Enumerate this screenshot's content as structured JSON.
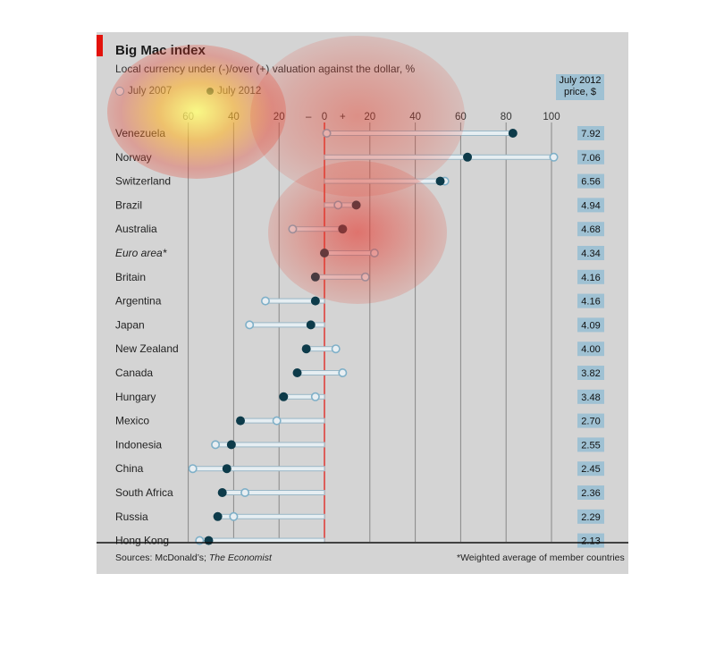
{
  "chart_data": {
    "type": "dot-range",
    "title": "Big Mac index",
    "subtitle": "Local currency under (-)/over (+) valuation against the dollar, %",
    "legend": [
      {
        "label": "July 2007",
        "marker": "hollow",
        "color": "#7fb0c8"
      },
      {
        "label": "July 2012",
        "marker": "filled",
        "color": "#0d3b4a"
      }
    ],
    "price_header": [
      "July 2012",
      "price, $"
    ],
    "x_ticks": [
      {
        "value": -60,
        "label": "60"
      },
      {
        "value": -40,
        "label": "40"
      },
      {
        "value": -20,
        "label": "20"
      },
      {
        "value": -7,
        "label": "–"
      },
      {
        "value": 0,
        "label": "0"
      },
      {
        "value": 8,
        "label": "+"
      },
      {
        "value": 20,
        "label": "20"
      },
      {
        "value": 40,
        "label": "40"
      },
      {
        "value": 60,
        "label": "60"
      },
      {
        "value": 80,
        "label": "80"
      },
      {
        "value": 100,
        "label": "100"
      }
    ],
    "gridlines": [
      -60,
      -40,
      -20,
      20,
      40,
      60,
      80,
      100
    ],
    "xlim": [
      -60,
      100
    ],
    "rows": [
      {
        "country": "Venezuela",
        "y2007": 1,
        "y2012": 83,
        "price": "7.92",
        "italic": false
      },
      {
        "country": "Norway",
        "y2007": 101,
        "y2012": 63,
        "price": "7.06",
        "italic": false
      },
      {
        "country": "Switzerland",
        "y2007": 53,
        "y2012": 51,
        "price": "6.56",
        "italic": false
      },
      {
        "country": "Brazil",
        "y2007": 6,
        "y2012": 14,
        "price": "4.94",
        "italic": false
      },
      {
        "country": "Australia",
        "y2007": -14,
        "y2012": 8,
        "price": "4.68",
        "italic": false
      },
      {
        "country": "Euro area*",
        "y2007": 22,
        "y2012": 0,
        "price": "4.34",
        "italic": true
      },
      {
        "country": "Britain",
        "y2007": 18,
        "y2012": -4,
        "price": "4.16",
        "italic": false
      },
      {
        "country": "Argentina",
        "y2007": -26,
        "y2012": -4,
        "price": "4.16",
        "italic": false
      },
      {
        "country": "Japan",
        "y2007": -33,
        "y2012": -6,
        "price": "4.09",
        "italic": false
      },
      {
        "country": "New Zealand",
        "y2007": 5,
        "y2012": -8,
        "price": "4.00",
        "italic": false
      },
      {
        "country": "Canada",
        "y2007": 8,
        "y2012": -12,
        "price": "3.82",
        "italic": false
      },
      {
        "country": "Hungary",
        "y2007": -4,
        "y2012": -18,
        "price": "3.48",
        "italic": false
      },
      {
        "country": "Mexico",
        "y2007": -21,
        "y2012": -37,
        "price": "2.70",
        "italic": false
      },
      {
        "country": "Indonesia",
        "y2007": -48,
        "y2012": -41,
        "price": "2.55",
        "italic": false
      },
      {
        "country": "China",
        "y2007": -58,
        "y2012": -43,
        "price": "2.45",
        "italic": false
      },
      {
        "country": "South Africa",
        "y2007": -35,
        "y2012": -45,
        "price": "2.36",
        "italic": false
      },
      {
        "country": "Russia",
        "y2007": -40,
        "y2012": -47,
        "price": "2.29",
        "italic": false
      },
      {
        "country": "Hong Kong",
        "y2007": -55,
        "y2012": -51,
        "price": "2.13",
        "italic": false
      }
    ],
    "sources": "Sources: McDonald’s;",
    "sources_italic": "The Economist",
    "footnote": "*Weighted average of member countries"
  },
  "colors": {
    "panel": "#d4d4d4",
    "accent_red": "#e3120b",
    "marker_2012": "#0d3b4a",
    "marker_2007": "#7fb0c8",
    "connector": "#9ab7c6",
    "price_box": "#9fc1d3"
  }
}
